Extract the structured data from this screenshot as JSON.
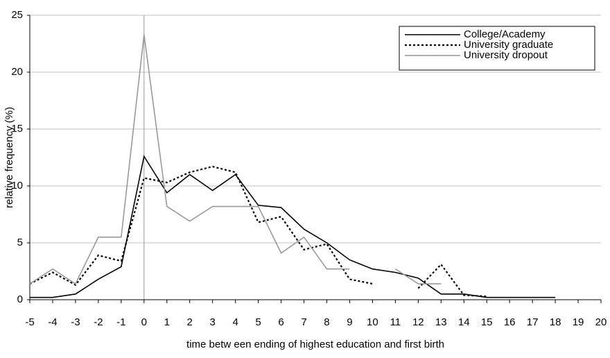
{
  "chart_data": {
    "type": "line",
    "x_label": "time betw een ending of highest education and first birth",
    "y_label": "relative frequency (%)",
    "x": [
      -5,
      -4,
      -3,
      -2,
      -1,
      0,
      1,
      2,
      3,
      4,
      5,
      6,
      7,
      8,
      9,
      10,
      11,
      12,
      13,
      14,
      15,
      16,
      17,
      18,
      19,
      20
    ],
    "series": [
      {
        "name": "College/Academy",
        "color": "#000000",
        "style": "solid",
        "values": [
          0.2,
          0.2,
          0.5,
          1.8,
          2.9,
          12.6,
          9.4,
          11.0,
          9.6,
          11.0,
          8.3,
          8.1,
          6.2,
          5.0,
          3.5,
          2.7,
          2.4,
          1.9,
          0.5,
          0.5,
          0.2,
          0.2,
          0.2,
          0.2,
          null,
          null
        ]
      },
      {
        "name": "University graduate",
        "color": "#000000",
        "style": "dotted",
        "values": [
          1.4,
          2.4,
          1.3,
          3.9,
          3.4,
          10.7,
          10.3,
          11.2,
          11.7,
          11.2,
          6.8,
          7.3,
          4.4,
          4.9,
          1.8,
          1.4,
          null,
          1.0,
          3.1,
          0.4,
          0.3,
          null,
          null,
          null,
          null,
          null
        ]
      },
      {
        "name": "University dropout",
        "color": "#999999",
        "style": "solid",
        "values": [
          1.4,
          2.7,
          1.4,
          5.5,
          5.5,
          23.3,
          8.2,
          6.9,
          8.2,
          8.2,
          8.2,
          4.1,
          5.5,
          2.7,
          2.7,
          null,
          2.7,
          1.4,
          1.4,
          null,
          null,
          null,
          null,
          null,
          null,
          null
        ]
      }
    ],
    "xlim": [
      -5,
      20
    ],
    "xticks": [
      -5,
      -4,
      -3,
      -2,
      -1,
      0,
      1,
      2,
      3,
      4,
      5,
      6,
      7,
      8,
      9,
      10,
      11,
      12,
      13,
      14,
      15,
      16,
      17,
      18,
      19,
      20
    ],
    "ylim": [
      0,
      25
    ],
    "yticks": [
      0,
      5,
      10,
      15,
      20,
      25
    ],
    "grid": true,
    "reference_line_x": 0,
    "legend": "upper right"
  }
}
